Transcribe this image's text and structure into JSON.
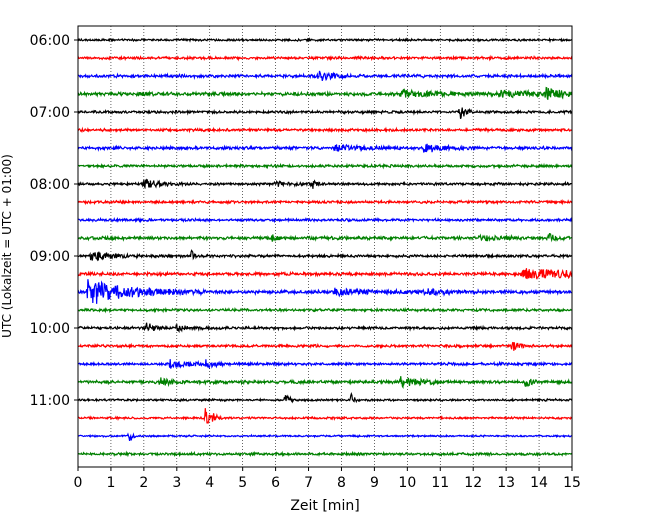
{
  "chart_data": {
    "type": "line",
    "title": "",
    "xlabel": "Zeit  [min]",
    "ylabel": "UTC (Lokalzeit = UTC + 01:00)",
    "xlim": [
      0,
      15
    ],
    "x_ticks": [
      "0",
      "1",
      "2",
      "3",
      "4",
      "5",
      "6",
      "7",
      "8",
      "9",
      "10",
      "11",
      "12",
      "13",
      "14",
      "15"
    ],
    "y_ticks": [
      "06:00",
      "07:00",
      "08:00",
      "09:00",
      "10:00",
      "11:00"
    ],
    "grid": "vertical dotted at each minute",
    "trace_interval_min": 15,
    "trace_colors": [
      "#000000",
      "#ff0000",
      "#0000ff",
      "#008000"
    ],
    "series": [
      {
        "start": "06:00",
        "base_amp": 0.12,
        "events": []
      },
      {
        "start": "06:15",
        "base_amp": 0.15,
        "events": []
      },
      {
        "start": "06:30",
        "base_amp": 0.18,
        "events": [
          {
            "t": 7.3,
            "amp": 0.6,
            "dur": 0.5
          }
        ]
      },
      {
        "start": "06:45",
        "base_amp": 0.2,
        "events": [
          {
            "t": 9.8,
            "amp": 0.5,
            "dur": 1.0
          },
          {
            "t": 12.8,
            "amp": 0.5,
            "dur": 1.0
          },
          {
            "t": 14.2,
            "amp": 0.7,
            "dur": 0.5
          }
        ]
      },
      {
        "start": "07:00",
        "base_amp": 0.15,
        "events": [
          {
            "t": 11.6,
            "amp": 1.0,
            "dur": 0.15
          }
        ]
      },
      {
        "start": "07:15",
        "base_amp": 0.15,
        "events": []
      },
      {
        "start": "07:30",
        "base_amp": 0.18,
        "events": [
          {
            "t": 7.8,
            "amp": 0.4,
            "dur": 0.8
          },
          {
            "t": 10.5,
            "amp": 0.6,
            "dur": 0.5
          }
        ]
      },
      {
        "start": "07:45",
        "base_amp": 0.15,
        "events": []
      },
      {
        "start": "08:00",
        "base_amp": 0.15,
        "events": [
          {
            "t": 2.0,
            "amp": 0.7,
            "dur": 0.4
          },
          {
            "t": 6.0,
            "amp": 0.4,
            "dur": 0.4
          },
          {
            "t": 7.1,
            "amp": 0.7,
            "dur": 0.1
          }
        ]
      },
      {
        "start": "08:15",
        "base_amp": 0.15,
        "events": []
      },
      {
        "start": "08:30",
        "base_amp": 0.15,
        "events": []
      },
      {
        "start": "08:45",
        "base_amp": 0.18,
        "events": [
          {
            "t": 5.9,
            "amp": 0.4,
            "dur": 0.2
          },
          {
            "t": 12.2,
            "amp": 0.4,
            "dur": 0.5
          },
          {
            "t": 14.3,
            "amp": 0.5,
            "dur": 0.3
          }
        ]
      },
      {
        "start": "09:00",
        "base_amp": 0.15,
        "events": [
          {
            "t": 0.4,
            "amp": 0.8,
            "dur": 0.5
          },
          {
            "t": 3.45,
            "amp": 0.6,
            "dur": 0.1
          }
        ]
      },
      {
        "start": "09:15",
        "base_amp": 0.18,
        "events": [
          {
            "t": 13.5,
            "amp": 0.8,
            "dur": 1.5
          }
        ]
      },
      {
        "start": "09:30",
        "base_amp": 0.2,
        "events": [
          {
            "t": 0.3,
            "amp": 1.8,
            "dur": 1.2
          },
          {
            "t": 7.8,
            "amp": 0.4,
            "dur": 1.0
          },
          {
            "t": 10.5,
            "amp": 0.4,
            "dur": 0.6
          }
        ]
      },
      {
        "start": "09:45",
        "base_amp": 0.15,
        "events": []
      },
      {
        "start": "10:00",
        "base_amp": 0.15,
        "events": [
          {
            "t": 2.05,
            "amp": 1.0,
            "dur": 0.2
          },
          {
            "t": 3.0,
            "amp": 0.4,
            "dur": 0.3
          }
        ]
      },
      {
        "start": "10:15",
        "base_amp": 0.15,
        "events": [
          {
            "t": 13.2,
            "amp": 0.9,
            "dur": 0.15
          }
        ]
      },
      {
        "start": "10:30",
        "base_amp": 0.15,
        "events": [
          {
            "t": 2.8,
            "amp": 0.6,
            "dur": 0.5
          },
          {
            "t": 3.9,
            "amp": 0.7,
            "dur": 0.2
          }
        ]
      },
      {
        "start": "10:45",
        "base_amp": 0.18,
        "events": [
          {
            "t": 2.5,
            "amp": 0.6,
            "dur": 0.3
          },
          {
            "t": 9.8,
            "amp": 0.8,
            "dur": 0.5
          },
          {
            "t": 13.6,
            "amp": 0.6,
            "dur": 0.15
          }
        ]
      },
      {
        "start": "11:00",
        "base_amp": 0.12,
        "events": [
          {
            "t": 6.3,
            "amp": 0.9,
            "dur": 0.1
          },
          {
            "t": 8.3,
            "amp": 0.9,
            "dur": 0.1
          }
        ]
      },
      {
        "start": "11:15",
        "base_amp": 0.12,
        "events": [
          {
            "t": 3.85,
            "amp": 1.6,
            "dur": 0.1
          },
          {
            "t": 4.1,
            "amp": 0.8,
            "dur": 0.1
          }
        ]
      },
      {
        "start": "11:30",
        "base_amp": 0.1,
        "events": [
          {
            "t": 1.55,
            "amp": 1.0,
            "dur": 0.1
          }
        ]
      },
      {
        "start": "11:45",
        "base_amp": 0.15,
        "events": []
      }
    ]
  }
}
